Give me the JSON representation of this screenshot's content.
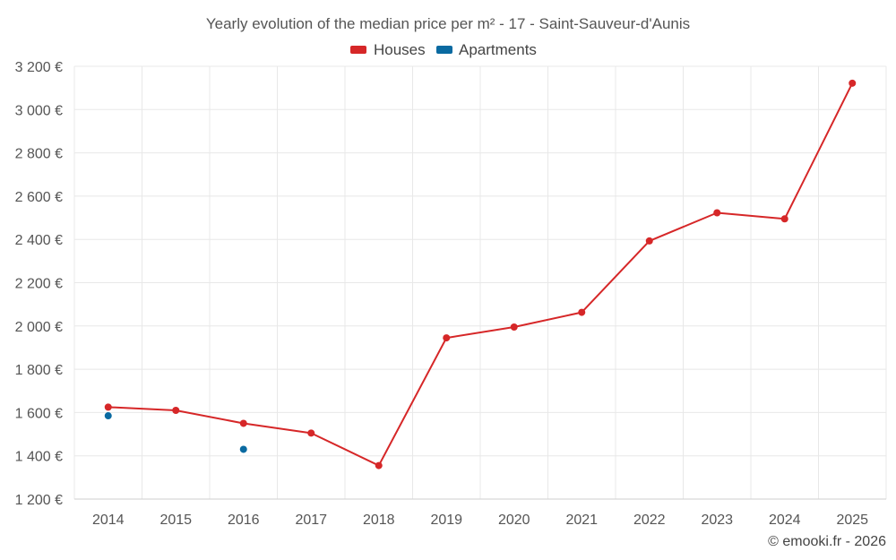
{
  "chart_data": {
    "type": "line",
    "title": "Yearly evolution of the median price per m² - 17 - Saint-Sauveur-d'Aunis",
    "categories": [
      "2014",
      "2015",
      "2016",
      "2017",
      "2018",
      "2019",
      "2020",
      "2021",
      "2022",
      "2023",
      "2024",
      "2025"
    ],
    "ylim": [
      1200,
      3200
    ],
    "yticks": [
      1200,
      1400,
      1600,
      1800,
      2000,
      2200,
      2400,
      2600,
      2800,
      3000,
      3200
    ],
    "ytick_labels": [
      "1 200 €",
      "1 400 €",
      "1 600 €",
      "1 800 €",
      "2 000 €",
      "2 200 €",
      "2 400 €",
      "2 600 €",
      "2 800 €",
      "3 000 €",
      "3 200 €"
    ],
    "legend_position": "top-center",
    "grid": true,
    "series": [
      {
        "name": "Houses",
        "color": "#d62728",
        "values": [
          1625,
          1610,
          1550,
          1505,
          1355,
          1945,
          1995,
          2063,
          2393,
          2523,
          2495,
          3122
        ]
      },
      {
        "name": "Apartments",
        "color": "#0a6aa1",
        "values": [
          1585,
          null,
          1430,
          null,
          null,
          null,
          null,
          null,
          null,
          null,
          null,
          null
        ]
      }
    ]
  },
  "credit": "© emooki.fr - 2026"
}
